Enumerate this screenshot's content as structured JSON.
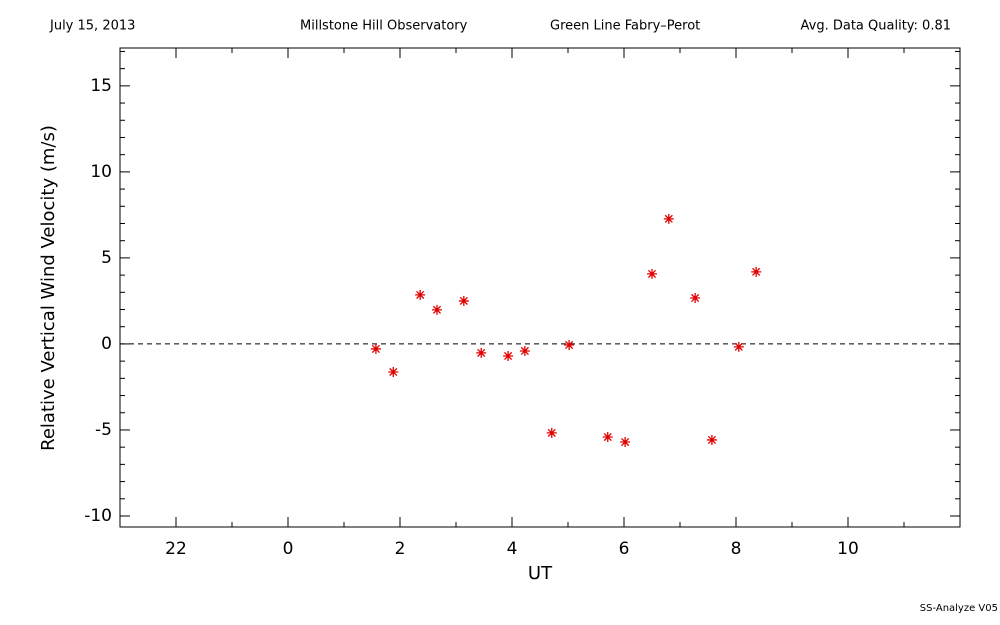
{
  "chart_data": {
    "type": "scatter",
    "header": [
      "July 15, 2013",
      "Millstone Hill Observatory",
      "Green Line Fabry–Perot",
      "Avg. Data Quality: 0.81"
    ],
    "footer": "SS-Analyze V05",
    "x_label": "UT",
    "y_label": "Relative Vertical Wind Velocity (m/s)",
    "color": "#e00000",
    "xlim": [
      -3,
      12
    ],
    "ylim": [
      -10.64,
      17.2
    ],
    "xticks": [
      {
        "value": -2,
        "label": "22"
      },
      0,
      2,
      4,
      6,
      8,
      10
    ],
    "yticks": [
      -10,
      -5,
      0,
      5,
      10,
      15
    ],
    "xticks_minor": [
      -3,
      -1,
      1,
      3,
      5,
      7,
      9,
      11
    ],
    "yticks_minor": [
      -9,
      -8,
      -7,
      -6,
      -4,
      -3,
      -2,
      -1,
      1,
      2,
      3,
      4,
      6,
      7,
      8,
      9,
      11,
      12,
      13,
      14,
      16,
      17
    ],
    "reference_line": 0,
    "x": [
      1.57,
      1.88,
      2.36,
      2.66,
      3.14,
      3.45,
      3.93,
      4.23,
      4.71,
      5.02,
      5.71,
      6.02,
      6.5,
      6.8,
      7.27,
      7.57,
      8.05,
      8.36
    ],
    "values": [
      -0.29,
      -1.63,
      2.85,
      1.98,
      2.5,
      -0.52,
      -0.7,
      -0.41,
      -5.17,
      -0.06,
      -5.41,
      -5.7,
      4.07,
      7.27,
      2.67,
      -5.58,
      -0.17,
      4.19
    ]
  }
}
